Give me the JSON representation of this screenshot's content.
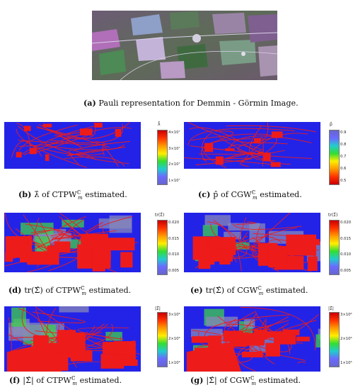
{
  "figure": {
    "top": {
      "caption_letter": "(a)",
      "caption_text": "Pauli representation for Demmin - Görmin Image."
    },
    "panels": [
      {
        "id": "b",
        "letter": "(b)",
        "caption_text": "λ̂ of CTPW",
        "caption_sub": "m",
        "caption_sup": "ℂ",
        "caption_tail": " estimated.",
        "colorbar_title": "λ̂",
        "colorbar_ticks": [
          "4×10⁷",
          "3×10⁷",
          "2×10⁷",
          "1×10⁷"
        ],
        "colorbar_palette": "jet"
      },
      {
        "id": "c",
        "letter": "(c)",
        "caption_text": "p̂ of CGW",
        "caption_sub": "m",
        "caption_sup": "ℂ",
        "caption_tail": " estimated.",
        "colorbar_title": "p̂",
        "colorbar_ticks": [
          "0.9",
          "0.8",
          "0.7",
          "0.6",
          "0.5"
        ],
        "colorbar_palette": "jet-reversed"
      },
      {
        "id": "d",
        "letter": "(d)",
        "caption_text": "tr(Σ̂) of CTPW",
        "caption_sub": "m",
        "caption_sup": "ℂ",
        "caption_tail": " estimated.",
        "colorbar_title": "tr(Σ̂)",
        "colorbar_ticks": [
          "0.020",
          "0.015",
          "0.010",
          "0.005"
        ],
        "colorbar_palette": "jet"
      },
      {
        "id": "e",
        "letter": "(e)",
        "caption_text": "tr(Σ̂) of CGW",
        "caption_sub": "m",
        "caption_sup": "ℂ",
        "caption_tail": " estimated.",
        "colorbar_title": "tr(Σ̂)",
        "colorbar_ticks": [
          "0.020",
          "0.015",
          "0.010",
          "0.005"
        ],
        "colorbar_palette": "jet"
      },
      {
        "id": "f",
        "letter": "(f)",
        "caption_text": "|Σ̂| of CTPW",
        "caption_sub": "m",
        "caption_sup": "ℂ",
        "caption_tail": " estimated.",
        "colorbar_title": "|Σ̂|",
        "colorbar_ticks": [
          "3×10⁶",
          "2×10⁶",
          "1×10⁶"
        ],
        "colorbar_palette": "jet"
      },
      {
        "id": "g",
        "letter": "(g)",
        "caption_text": "|Σ̂| of CGW",
        "caption_sub": "m",
        "caption_sup": "ℂ",
        "caption_tail": " estimated.",
        "colorbar_title": "|Σ̂|",
        "colorbar_ticks": [
          "3×10⁶",
          "2×10⁶",
          "1×10⁶"
        ],
        "colorbar_palette": "jet"
      }
    ]
  },
  "colors": {
    "map_blue": "#2323e8",
    "map_red": "#ee1b1b",
    "map_green": "#3fd04a",
    "map_gray": "#8888b8"
  }
}
